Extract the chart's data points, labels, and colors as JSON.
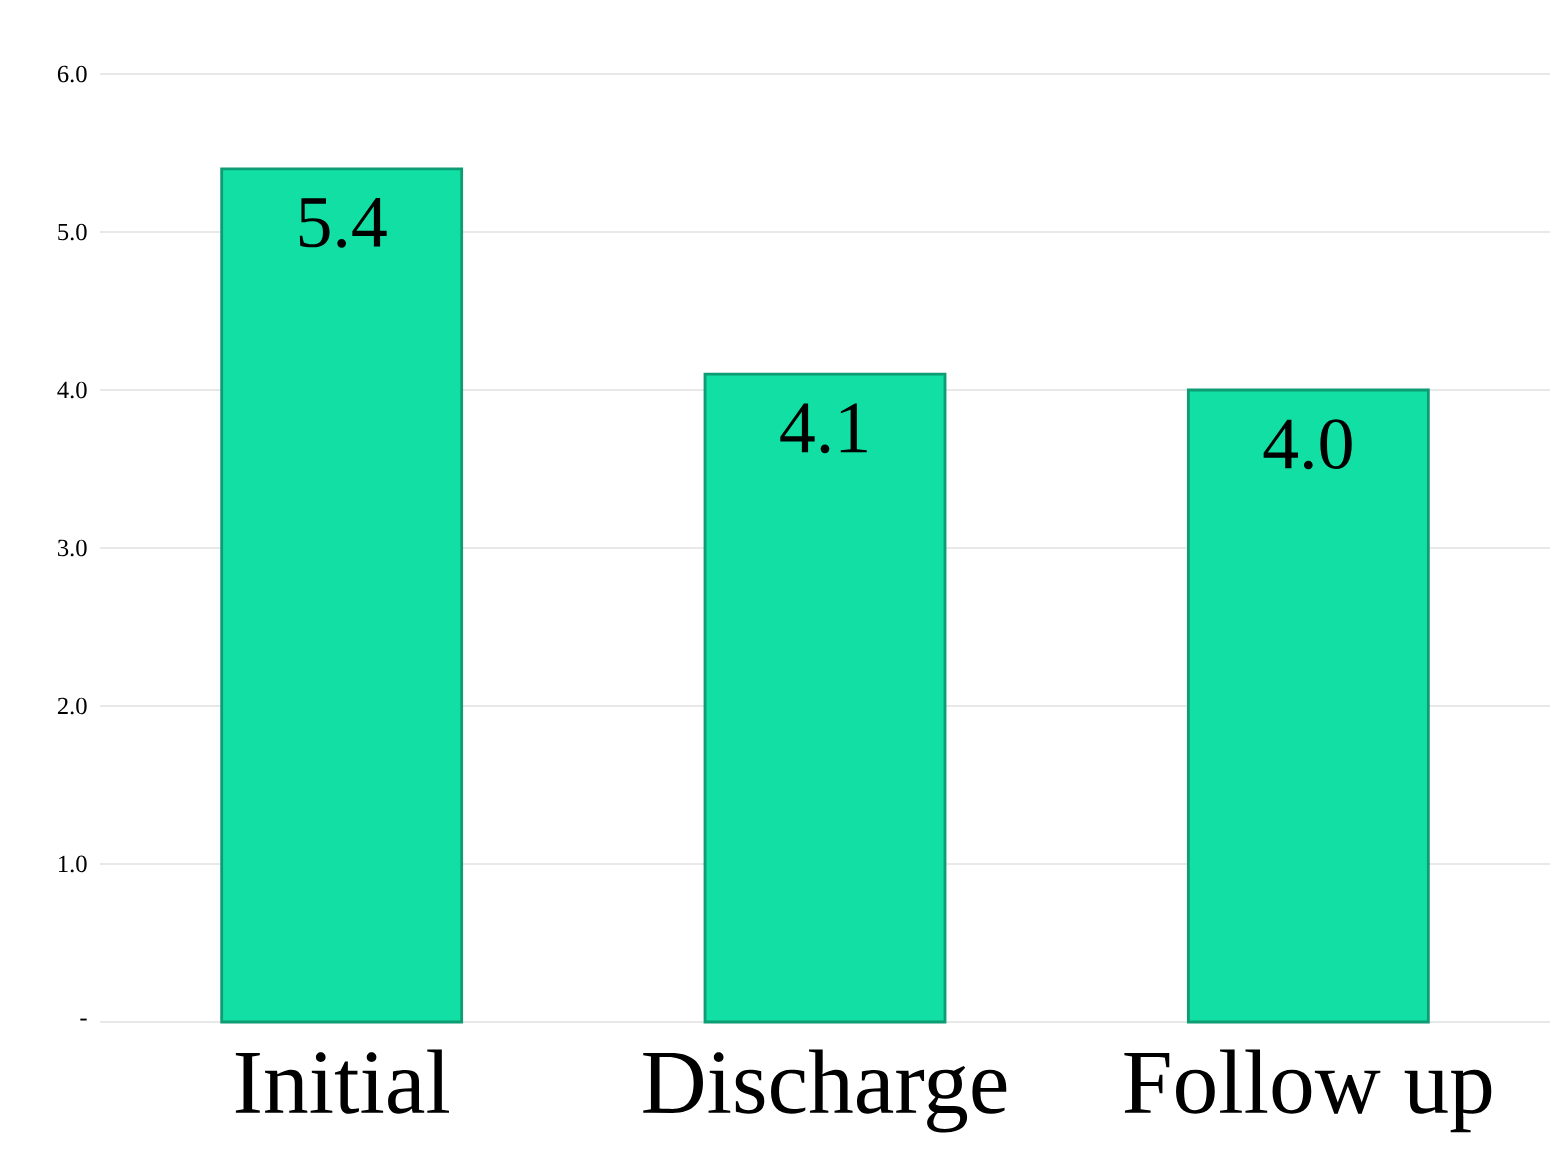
{
  "chart_data": {
    "type": "bar",
    "categories": [
      "Initial",
      "Discharge",
      "Follow up"
    ],
    "values": [
      5.4,
      4.1,
      4.0
    ],
    "value_labels": [
      "5.4",
      "4.1",
      "4.0"
    ],
    "color": "#12dfa4",
    "ylim": [
      0,
      6
    ],
    "yticks": [
      {
        "value": 0,
        "label": "-"
      },
      {
        "value": 1,
        "label": "1.0"
      },
      {
        "value": 2,
        "label": "2.0"
      },
      {
        "value": 3,
        "label": "3.0"
      },
      {
        "value": 4,
        "label": "4.0"
      },
      {
        "value": 5,
        "label": "5.0"
      },
      {
        "value": 6,
        "label": "6.0"
      }
    ],
    "grid": "y"
  }
}
